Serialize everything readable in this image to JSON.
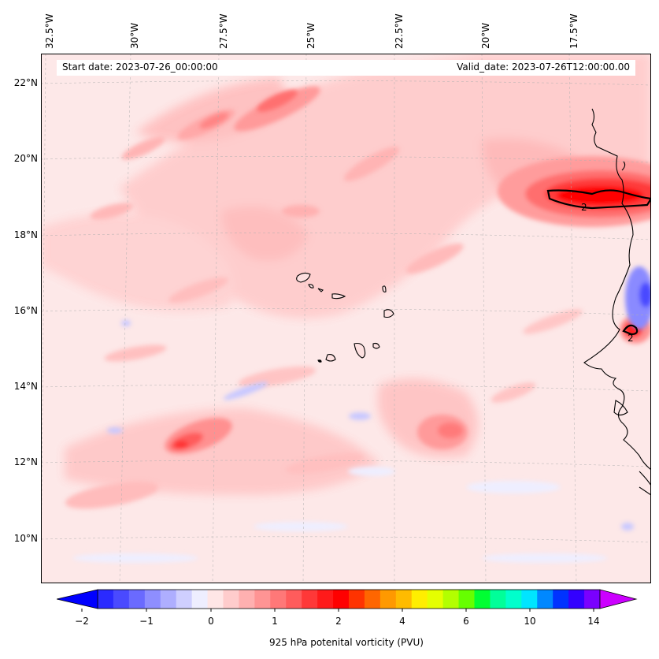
{
  "map": {
    "start_date": "Start date: 2023-07-26_00:00:00",
    "valid_date": "Valid_date: 2023-07-26T12:00:00.00",
    "lon_labels": [
      "32.5°W",
      "30°W",
      "27.5°W",
      "25°W",
      "22.5°W",
      "20°W",
      "17.5°W"
    ],
    "lat_labels": [
      "22°N",
      "20°N",
      "18°N",
      "16°N",
      "14°N",
      "12°N",
      "10°N"
    ],
    "contour_labels": [
      "2",
      "2"
    ],
    "background_color": "#fde8e8",
    "coast_color": "#000000"
  },
  "colorbar": {
    "label": "925 hPa potenital vorticity (PVU)",
    "ticks": [
      "−2",
      "−1",
      "0",
      "1",
      "2",
      "4",
      "6",
      "10",
      "14"
    ],
    "colors": [
      "#0000ff",
      "#2a2aff",
      "#4a4aff",
      "#6a6aff",
      "#8e8eff",
      "#aeaeff",
      "#cfcfff",
      "#eeeeff",
      "#ffe6e6",
      "#ffcccc",
      "#ffb0b0",
      "#ff9494",
      "#ff7878",
      "#ff5c5c",
      "#ff3838",
      "#ff1a1a",
      "#ff0000",
      "#ff3300",
      "#ff6600",
      "#ff9900",
      "#ffbb00",
      "#ffee00",
      "#e5ff00",
      "#b3ff00",
      "#66ff00",
      "#00ff33",
      "#00ff99",
      "#00ffcc",
      "#00e5ff",
      "#0088ff",
      "#0033ff",
      "#3300ff",
      "#7a00ff",
      "#bb00ff"
    ]
  }
}
